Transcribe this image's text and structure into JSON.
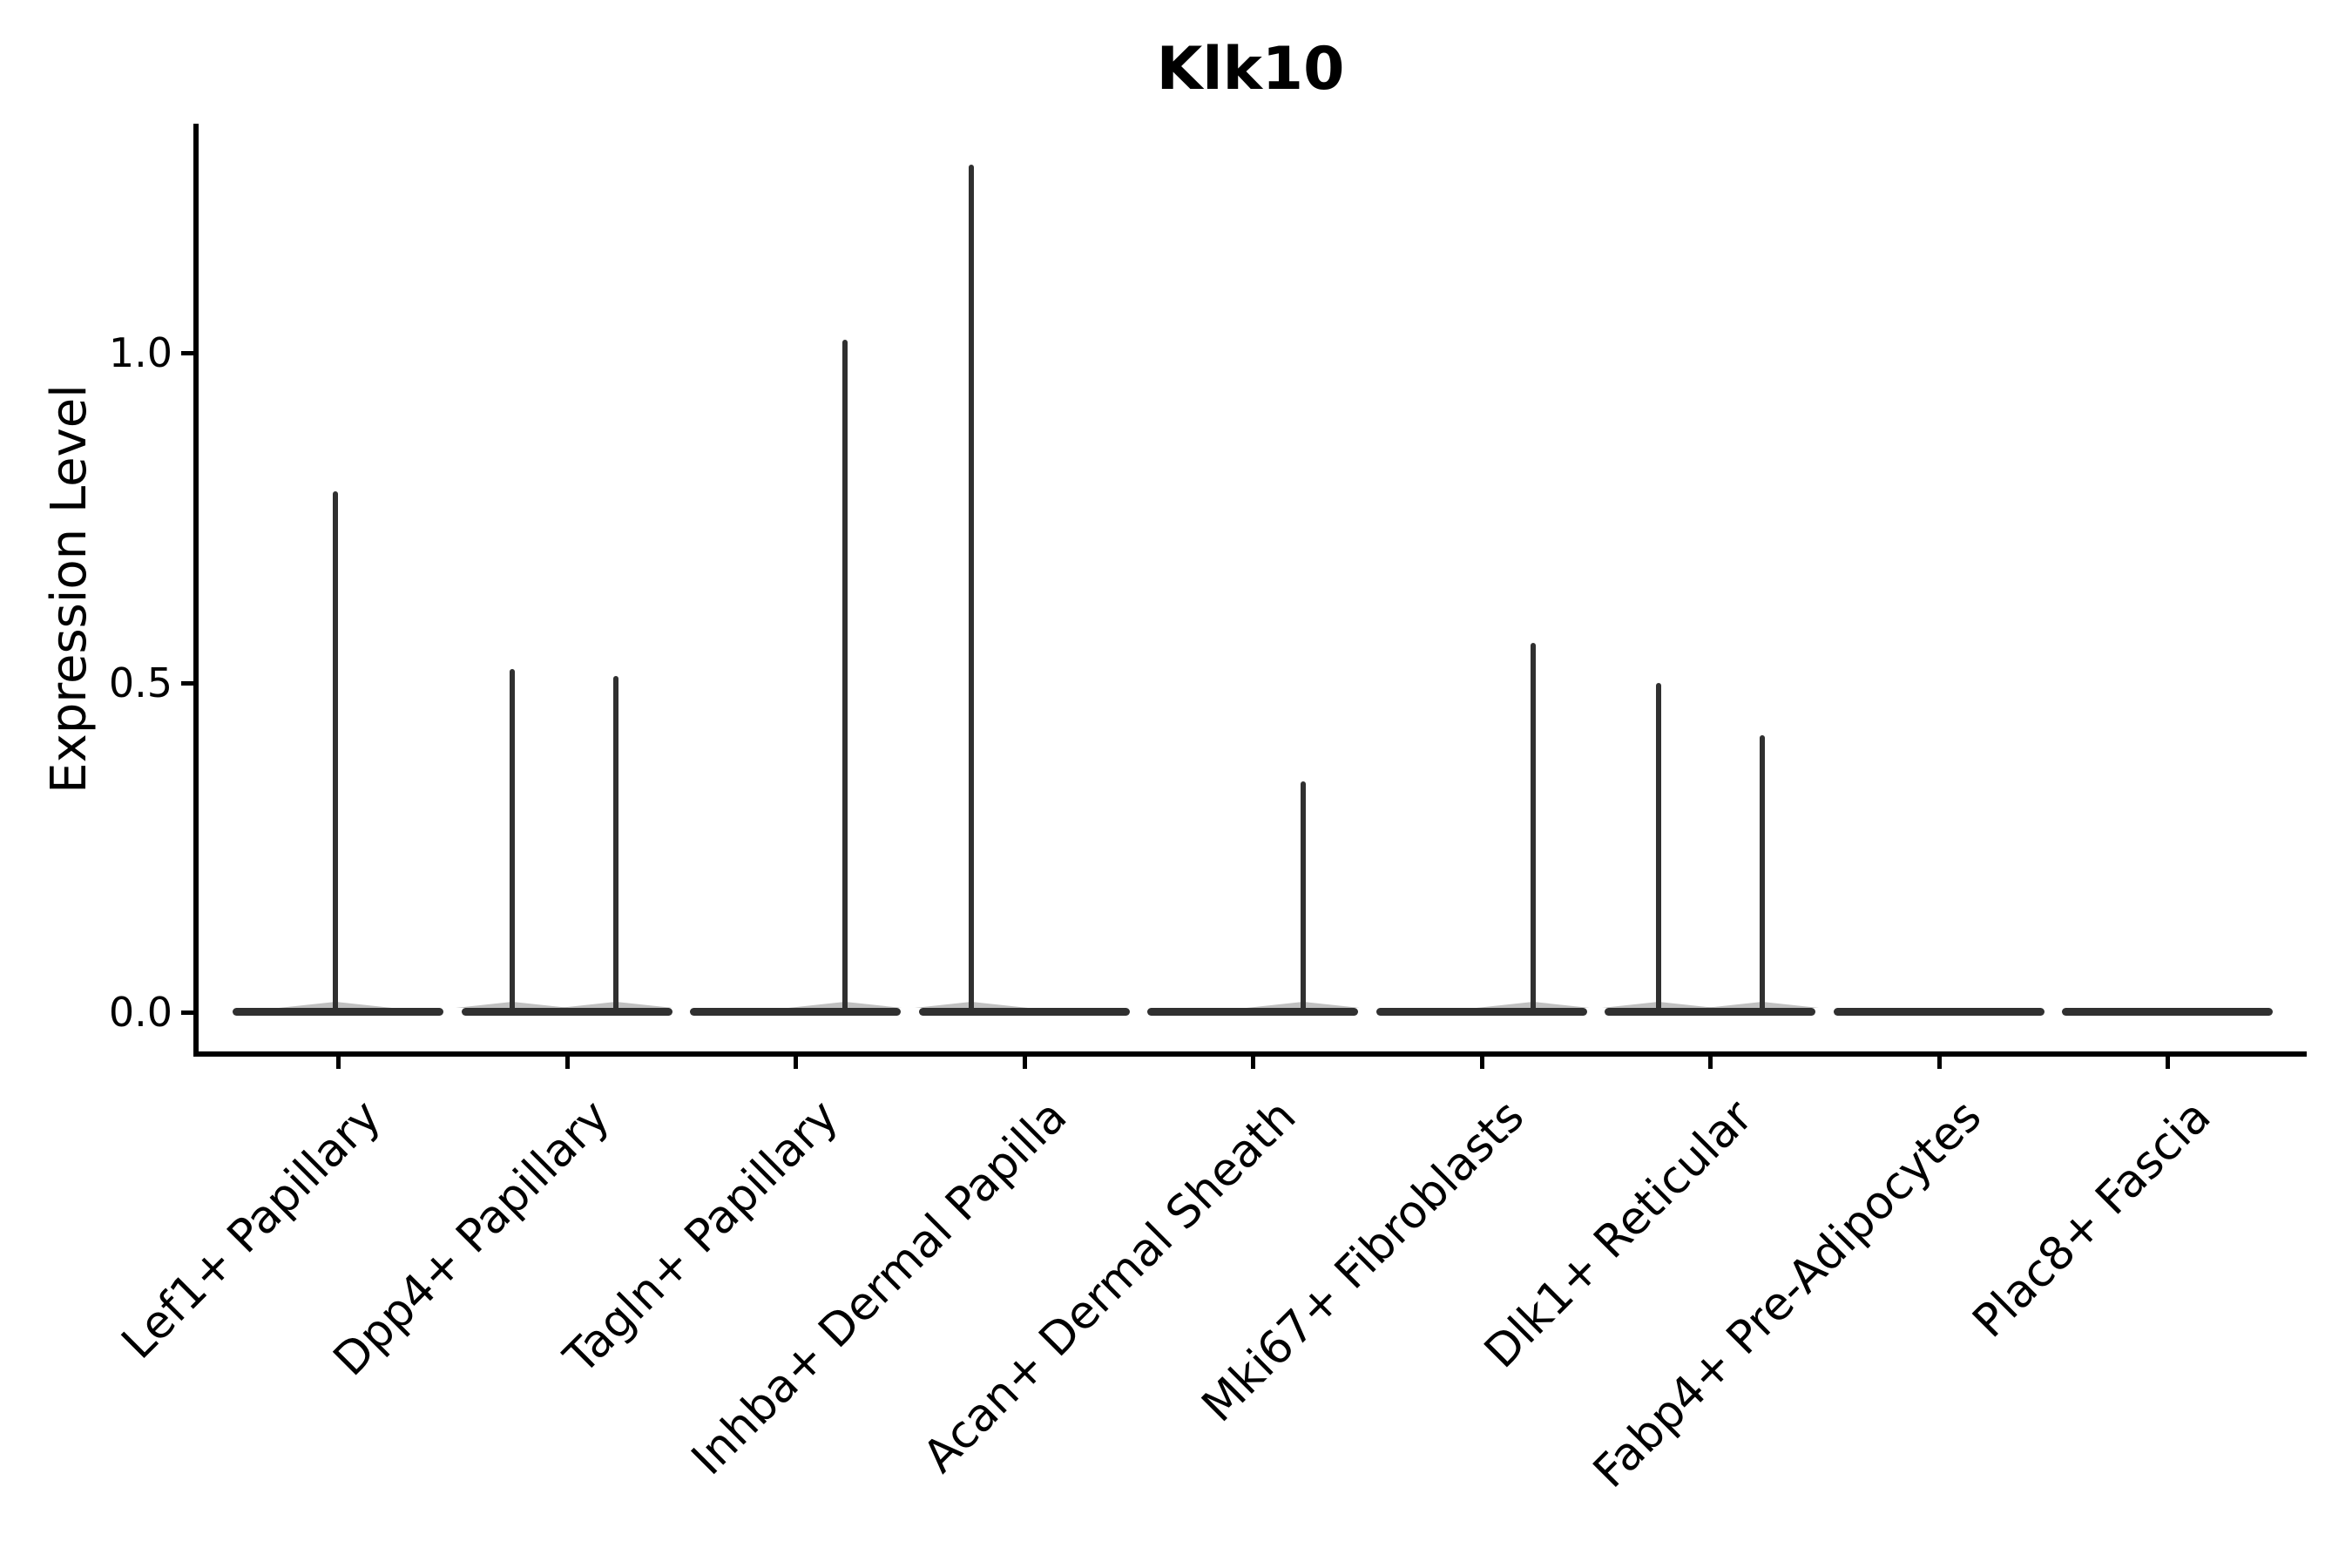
{
  "title": {
    "text": "Klk10"
  },
  "axes": {
    "ylabel": "Expression Level",
    "ytick_labels": [
      "0.0",
      "0.5",
      "1.0"
    ],
    "categories": [
      "Lef1+ Papillary",
      "Dpp4+ Papillary",
      "Tagln+ Papillary",
      "Inhba+ Dermal Papilla",
      "Acan+ Dermal Sheath",
      "Mki67+ Fibroblasts",
      "Dlk1+ Reticular",
      "Fabp4+ Pre-Adipocytes",
      "Plac8+ Fascia"
    ]
  },
  "chart_data": {
    "type": "violin",
    "title": "Klk10",
    "xlabel": "",
    "ylabel": "Expression Level",
    "ylim": [
      -0.06,
      1.35
    ],
    "yticks": [
      0.0,
      0.5,
      1.0
    ],
    "ytick_labels": [
      "0.0",
      "0.5",
      "1.0"
    ],
    "grid": false,
    "legend": "none",
    "violin_color": "#303030",
    "violin_width_frac": 0.92,
    "description": "Each cell type shows a flattened violin (density mass at expression 0) drawn as a horizontal bar at y=0, with thin vertical density spikes at the expression levels of the few expressing cells.",
    "categories": [
      "Lef1+ Papillary",
      "Dpp4+ Papillary",
      "Tagln+ Papillary",
      "Inhba+ Dermal Papilla",
      "Acan+ Dermal Sheath",
      "Mki67+ Fibroblasts",
      "Dlk1+ Reticular",
      "Fabp4+ Pre-Adipocytes",
      "Plac8+ Fascia"
    ],
    "series": [
      {
        "category": "Lef1+ Papillary",
        "baseline_value": 0,
        "max_expression": 0.79,
        "spikes": [
          {
            "offset_frac": -0.011,
            "value": 0.79
          }
        ]
      },
      {
        "category": "Dpp4+ Papillary",
        "baseline_value": 0,
        "max_expression": 0.52,
        "spikes": [
          {
            "offset_frac": -0.238,
            "value": 0.52
          },
          {
            "offset_frac": 0.215,
            "value": 0.51
          }
        ]
      },
      {
        "category": "Tagln+ Papillary",
        "baseline_value": 0,
        "max_expression": 1.02,
        "spikes": [
          {
            "offset_frac": 0.217,
            "value": 1.02
          }
        ]
      },
      {
        "category": "Inhba+ Dermal Papilla",
        "baseline_value": 0,
        "max_expression": 1.285,
        "spikes": [
          {
            "offset_frac": -0.23,
            "value": 1.285
          }
        ]
      },
      {
        "category": "Acan+ Dermal Sheath",
        "baseline_value": 0,
        "max_expression": 0.35,
        "spikes": [
          {
            "offset_frac": 0.221,
            "value": 0.35
          }
        ]
      },
      {
        "category": "Mki67+ Fibroblasts",
        "baseline_value": 0,
        "max_expression": 0.56,
        "spikes": [
          {
            "offset_frac": 0.227,
            "value": 0.56
          }
        ]
      },
      {
        "category": "Dlk1+ Reticular",
        "baseline_value": 0,
        "max_expression": 0.5,
        "spikes": [
          {
            "offset_frac": -0.225,
            "value": 0.5
          },
          {
            "offset_frac": 0.229,
            "value": 0.42
          }
        ]
      },
      {
        "category": "Fabp4+ Pre-Adipocytes",
        "baseline_value": 0,
        "max_expression": 0,
        "spikes": []
      },
      {
        "category": "Plac8+ Fascia",
        "baseline_value": 0,
        "max_expression": 0,
        "spikes": []
      }
    ]
  },
  "colors": {
    "background": "#ffffff",
    "axis": "#000000",
    "text": "#000000",
    "violin": "#303030"
  }
}
